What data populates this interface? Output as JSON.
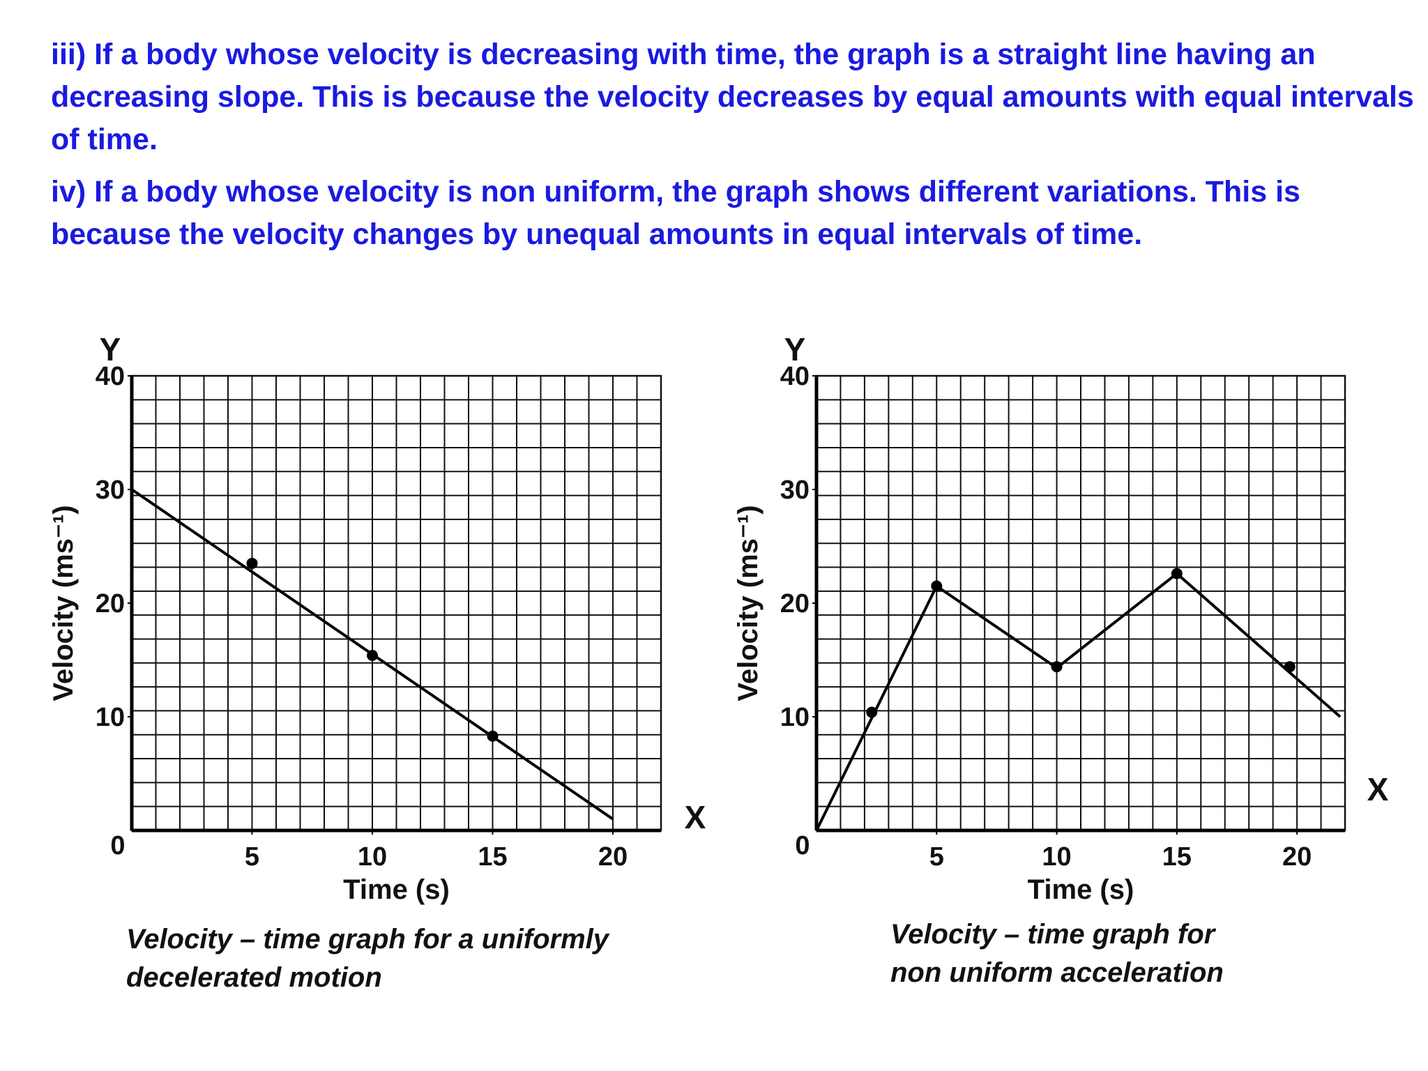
{
  "paragraphs": [
    "iii) If a body whose velocity is decreasing with time, the graph is a straight line having an decreasing slope. This is because the velocity decreases by equal amounts with equal intervals of time.",
    "iv) If a body whose velocity is non uniform, the graph shows different variations. This is because the velocity changes by unequal amounts in equal intervals of time."
  ],
  "chart_data": [
    {
      "type": "line",
      "x_label": "Time (s)",
      "y_label": "Velocity (ms⁻¹)",
      "x_axis_letter": "X",
      "y_axis_letter": "Y",
      "caption": [
        "Velocity – time graph for a uniformly",
        "decelerated motion"
      ],
      "xlim": [
        0,
        22
      ],
      "ylim": [
        0,
        40
      ],
      "xticks": [
        0,
        5,
        10,
        15,
        20
      ],
      "yticks": [
        10,
        20,
        30,
        40
      ],
      "grid": true,
      "color": "#000000",
      "line": {
        "x": [
          0,
          20
        ],
        "values": [
          30,
          1
        ]
      },
      "points": {
        "x": [
          5,
          10,
          15
        ],
        "values": [
          23.5,
          15.4,
          8.3
        ]
      }
    },
    {
      "type": "line",
      "x_label": "Time (s)",
      "y_label": "Velocity (ms⁻¹)",
      "x_axis_letter": "X",
      "y_axis_letter": "Y",
      "caption": [
        "Velocity – time graph for",
        "non uniform acceleration"
      ],
      "xlim": [
        0,
        22
      ],
      "ylim": [
        0,
        40
      ],
      "xticks": [
        0,
        5,
        10,
        15,
        20
      ],
      "yticks": [
        10,
        20,
        30,
        40
      ],
      "grid": true,
      "color": "#000000",
      "line": {
        "x": [
          0,
          5,
          10,
          15,
          21.8
        ],
        "values": [
          0,
          21.5,
          14.3,
          22.6,
          10
        ]
      },
      "points": {
        "x": [
          2.3,
          5,
          10,
          15,
          19.7
        ],
        "values": [
          10.4,
          21.5,
          14.4,
          22.6,
          14.4
        ]
      }
    }
  ]
}
